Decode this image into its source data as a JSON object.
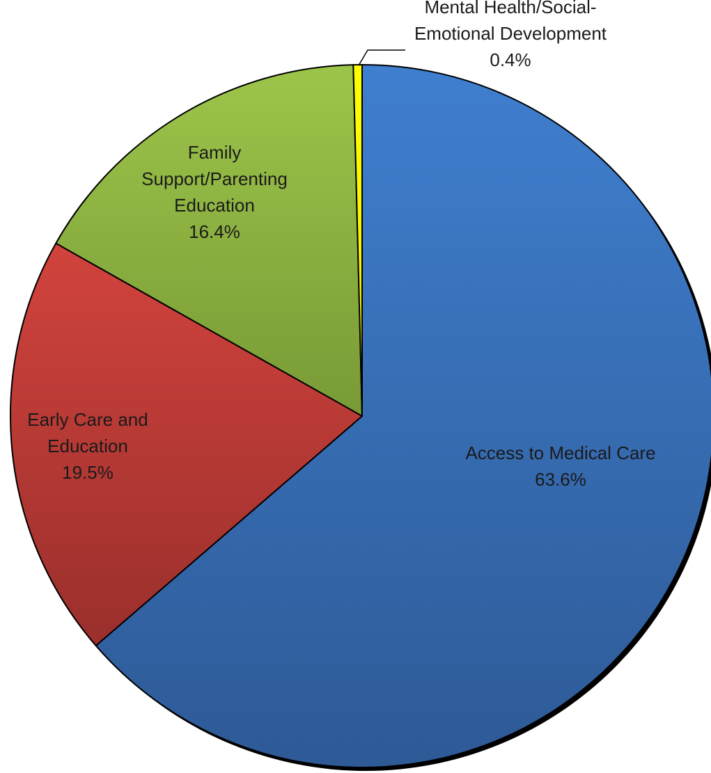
{
  "chart_data": {
    "type": "pie",
    "title": "",
    "start_angle_deg": 0,
    "direction": "clockwise",
    "slices": [
      {
        "key": "access-to-medical-care",
        "label_lines": [
          "Access to Medical Care"
        ],
        "percent_label": "63.6%",
        "value": 63.6,
        "color_top": "#3f7fcf",
        "color_bottom": "#2e5a96"
      },
      {
        "key": "early-care-and-education",
        "label_lines": [
          "Early Care and",
          "Education"
        ],
        "percent_label": "19.5%",
        "value": 19.5,
        "color_top": "#d2433d",
        "color_bottom": "#9a2f2c"
      },
      {
        "key": "family-support-parenting-education",
        "label_lines": [
          "Family",
          "Support/Parenting",
          "Education"
        ],
        "percent_label": "16.4%",
        "value": 16.4,
        "color_top": "#9dc54a",
        "color_bottom": "#789a36"
      },
      {
        "key": "mental-health-social-emotional-development",
        "label_lines": [
          "Mental Health/Social-",
          "Emotional Development"
        ],
        "percent_label": "0.4%",
        "value": 0.4,
        "color_top": "#ffff00",
        "color_bottom": "#f0e800"
      }
    ]
  }
}
